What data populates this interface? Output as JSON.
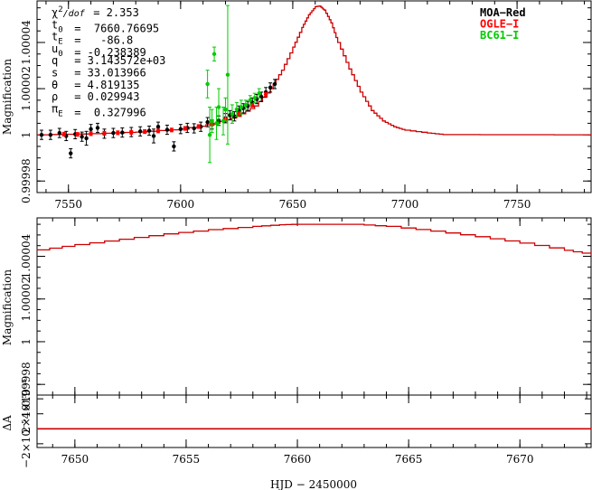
{
  "chart_data": [
    {
      "type": "line",
      "panel": "top",
      "ylabel": "Magnification",
      "xlim": [
        7536,
        7783
      ],
      "ylim": [
        0.999975,
        1.000058
      ],
      "x_ticks": [
        7550,
        7600,
        7650,
        7700,
        7750
      ],
      "y_ticks": [
        {
          "value": 0.99998,
          "label": "0.99998"
        },
        {
          "value": 1.0,
          "label": "1"
        },
        {
          "value": 1.00002,
          "label": "1.00002"
        },
        {
          "value": 1.00004,
          "label": "1.00004"
        }
      ],
      "params": [
        {
          "name": "χ²/dof",
          "value": "= 2.353"
        },
        {
          "name": "t0",
          "value": "=  7660.76695"
        },
        {
          "name": "tE",
          "value": "=   -86.8"
        },
        {
          "name": "u0",
          "value": "= -0.238389"
        },
        {
          "name": "q",
          "value": "= 3.143572e+03"
        },
        {
          "name": "s",
          "value": "= 33.013966"
        },
        {
          "name": "θ",
          "value": "= 4.819135"
        },
        {
          "name": "ρ",
          "value": "= 0.029943"
        },
        {
          "name": "πE",
          "value": "=  0.327996"
        }
      ],
      "legend": [
        {
          "label": "MOA−Red",
          "color": "#000000"
        },
        {
          "label": "OGLE−I",
          "color": "#ff0000"
        },
        {
          "label": "BC61−I",
          "color": "#00cc00"
        }
      ],
      "model": {
        "color": "#cc0000",
        "x": [
          7536,
          7560,
          7580,
          7600,
          7615,
          7625,
          7633,
          7640,
          7645,
          7650,
          7654,
          7657,
          7660,
          7662,
          7664,
          7667,
          7670,
          7675,
          7680,
          7685,
          7690,
          7695,
          7700,
          7710,
          7717,
          7783
        ],
        "y": [
          1.0,
          1.0000005,
          1.0000012,
          1.0000025,
          1.000005,
          1.000008,
          1.0000125,
          1.00002,
          1.000028,
          1.000038,
          1.0000465,
          1.000052,
          1.0000555,
          1.0000558,
          1.000054,
          1.0000485,
          1.00004,
          1.0000285,
          1.0000185,
          1.0000105,
          1.000006,
          1.0000035,
          1.000002,
          1.0000008,
          1.0000001,
          1.0
        ]
      },
      "series": [
        {
          "name": "MOA−Red",
          "color": "#000000",
          "points": [
            {
              "x": 7538,
              "y": 1.0,
              "err": 2e-06
            },
            {
              "x": 7542,
              "y": 1.0,
              "err": 2e-06
            },
            {
              "x": 7546,
              "y": 1.0000008,
              "err": 2e-06
            },
            {
              "x": 7549,
              "y": 0.9999995,
              "err": 2e-06
            },
            {
              "x": 7551,
              "y": 0.999992,
              "err": 2e-06
            },
            {
              "x": 7553,
              "y": 1.0000003,
              "err": 2e-06
            },
            {
              "x": 7556,
              "y": 0.9999992,
              "err": 2e-06
            },
            {
              "x": 7558,
              "y": 0.9999985,
              "err": 3e-06
            },
            {
              "x": 7560,
              "y": 1.0000025,
              "err": 2e-06
            },
            {
              "x": 7563,
              "y": 1.000003,
              "err": 2e-06
            },
            {
              "x": 7566,
              "y": 1.0000005,
              "err": 2e-06
            },
            {
              "x": 7570,
              "y": 1.0000008,
              "err": 2e-06
            },
            {
              "x": 7574,
              "y": 1.000001,
              "err": 2e-06
            },
            {
              "x": 7578,
              "y": 1.0000012,
              "err": 2e-06
            },
            {
              "x": 7582,
              "y": 1.0000015,
              "err": 2e-06
            },
            {
              "x": 7586,
              "y": 1.0000018,
              "err": 2e-06
            },
            {
              "x": 7588,
              "y": 0.9999995,
              "err": 3e-06
            },
            {
              "x": 7590,
              "y": 1.0000035,
              "err": 2e-06
            },
            {
              "x": 7594,
              "y": 1.0000022,
              "err": 2e-06
            },
            {
              "x": 7597,
              "y": 0.999995,
              "err": 2e-06
            },
            {
              "x": 7600,
              "y": 1.0000025,
              "err": 2e-06
            },
            {
              "x": 7603,
              "y": 1.000003,
              "err": 2e-06
            },
            {
              "x": 7606,
              "y": 1.0000028,
              "err": 2e-06
            },
            {
              "x": 7609,
              "y": 1.0000035,
              "err": 2e-06
            },
            {
              "x": 7612,
              "y": 1.0000055,
              "err": 2e-06
            },
            {
              "x": 7614,
              "y": 1.0000045,
              "err": 2e-06
            },
            {
              "x": 7617,
              "y": 1.0000062,
              "err": 2e-06
            },
            {
              "x": 7620,
              "y": 1.0000072,
              "err": 2e-06
            },
            {
              "x": 7622,
              "y": 1.0000085,
              "err": 2e-06
            },
            {
              "x": 7624,
              "y": 1.000008,
              "err": 2e-06
            },
            {
              "x": 7626,
              "y": 1.0000105,
              "err": 2e-06
            },
            {
              "x": 7628,
              "y": 1.0000115,
              "err": 2e-06
            },
            {
              "x": 7630,
              "y": 1.0000125,
              "err": 2e-06
            },
            {
              "x": 7632,
              "y": 1.000014,
              "err": 2e-06
            },
            {
              "x": 7634,
              "y": 1.0000155,
              "err": 2e-06
            },
            {
              "x": 7636,
              "y": 1.0000165,
              "err": 2e-06
            },
            {
              "x": 7638,
              "y": 1.0000185,
              "err": 2e-06
            },
            {
              "x": 7640,
              "y": 1.0000205,
              "err": 2e-06
            },
            {
              "x": 7642,
              "y": 1.000022,
              "err": 2e-06
            }
          ]
        },
        {
          "name": "OGLE−I",
          "color": "#ff0000",
          "points": [
            {
              "x": 7548,
              "y": 1.0000003,
              "err": 8e-07
            },
            {
              "x": 7554,
              "y": 1.0000002,
              "err": 8e-07
            },
            {
              "x": 7560,
              "y": 1.0000005,
              "err": 8e-07
            },
            {
              "x": 7566,
              "y": 1.0000007,
              "err": 8e-07
            },
            {
              "x": 7572,
              "y": 1.0000009,
              "err": 8e-07
            },
            {
              "x": 7578,
              "y": 1.0000011,
              "err": 8e-07
            },
            {
              "x": 7584,
              "y": 1.0000014,
              "err": 8e-07
            },
            {
              "x": 7590,
              "y": 1.0000017,
              "err": 8e-07
            },
            {
              "x": 7596,
              "y": 1.0000021,
              "err": 8e-07
            },
            {
              "x": 7602,
              "y": 1.0000028,
              "err": 8e-07
            },
            {
              "x": 7608,
              "y": 1.0000036,
              "err": 8e-07
            },
            {
              "x": 7614,
              "y": 1.0000048,
              "err": 8e-07
            },
            {
              "x": 7620,
              "y": 1.0000066,
              "err": 8e-07
            },
            {
              "x": 7626,
              "y": 1.0000092,
              "err": 8e-07
            },
            {
              "x": 7632,
              "y": 1.0000128,
              "err": 8e-07
            },
            {
              "x": 7638,
              "y": 1.0000175,
              "err": 8e-07
            }
          ]
        },
        {
          "name": "BC61−I",
          "color": "#00cc00",
          "points": [
            {
              "x": 7612,
              "y": 1.000022,
              "err": 6e-06
            },
            {
              "x": 7613,
              "y": 1.0,
              "err": 1.2e-05
            },
            {
              "x": 7614,
              "y": 1.000006,
              "err": 5e-06
            },
            {
              "x": 7615,
              "y": 1.000035,
              "err": 3e-06
            },
            {
              "x": 7616,
              "y": 1.000005,
              "err": 7e-06
            },
            {
              "x": 7617,
              "y": 1.000012,
              "err": 8e-06
            },
            {
              "x": 7619,
              "y": 1.000006,
              "err": 6e-06
            },
            {
              "x": 7620,
              "y": 1.000011,
              "err": 5e-06
            },
            {
              "x": 7621,
              "y": 1.000026,
              "err": 3e-05
            },
            {
              "x": 7623,
              "y": 1.000009,
              "err": 4e-06
            },
            {
              "x": 7625,
              "y": 1.000011,
              "err": 3e-06
            },
            {
              "x": 7627,
              "y": 1.000012,
              "err": 3e-06
            },
            {
              "x": 7629,
              "y": 1.000013,
              "err": 2e-06
            },
            {
              "x": 7631,
              "y": 1.000015,
              "err": 2e-06
            },
            {
              "x": 7633,
              "y": 1.000016,
              "err": 2e-06
            },
            {
              "x": 7635,
              "y": 1.000018,
              "err": 2e-06
            }
          ]
        }
      ]
    },
    {
      "type": "line",
      "panel": "middle",
      "ylabel": "Magnification",
      "xlim": [
        7648.3,
        7673.2
      ],
      "ylim": [
        0.999975,
        1.000058
      ],
      "y_ticks": [
        {
          "value": 0.99998,
          "label": "0.99998"
        },
        {
          "value": 1.0,
          "label": "1"
        },
        {
          "value": 1.00002,
          "label": "1.00002"
        },
        {
          "value": 1.00004,
          "label": "1.00004"
        }
      ],
      "model": {
        "color": "#cc0000",
        "x": [
          7648.3,
          7650,
          7652,
          7654,
          7656,
          7658,
          7659.2,
          7660,
          7662.5,
          7664,
          7666,
          7668,
          7670,
          7672,
          7673.2
        ],
        "y": [
          1.000043,
          1.0000455,
          1.000048,
          1.0000505,
          1.0000525,
          1.000054,
          1.0000548,
          1.000055,
          1.000055,
          1.000054,
          1.0000518,
          1.0000492,
          1.0000462,
          1.0000428,
          1.0000408
        ]
      }
    },
    {
      "type": "line",
      "panel": "residual",
      "ylabel": "ΔA",
      "xlabel": "HJD − 2450000",
      "xlim": [
        7648.3,
        7673.2
      ],
      "x_ticks": [
        7650,
        7655,
        7660,
        7665,
        7670
      ],
      "ylim": [
        -2.5e-05,
        4.5e-05
      ],
      "y_tick_labels": [
        "−2×10⁻⁵",
        "2×10⁻⁵",
        "4×10⁻⁵"
      ],
      "model": {
        "color": "#cc0000",
        "x": [
          7648.3,
          7673.2
        ],
        "y": [
          0,
          0
        ]
      }
    }
  ]
}
